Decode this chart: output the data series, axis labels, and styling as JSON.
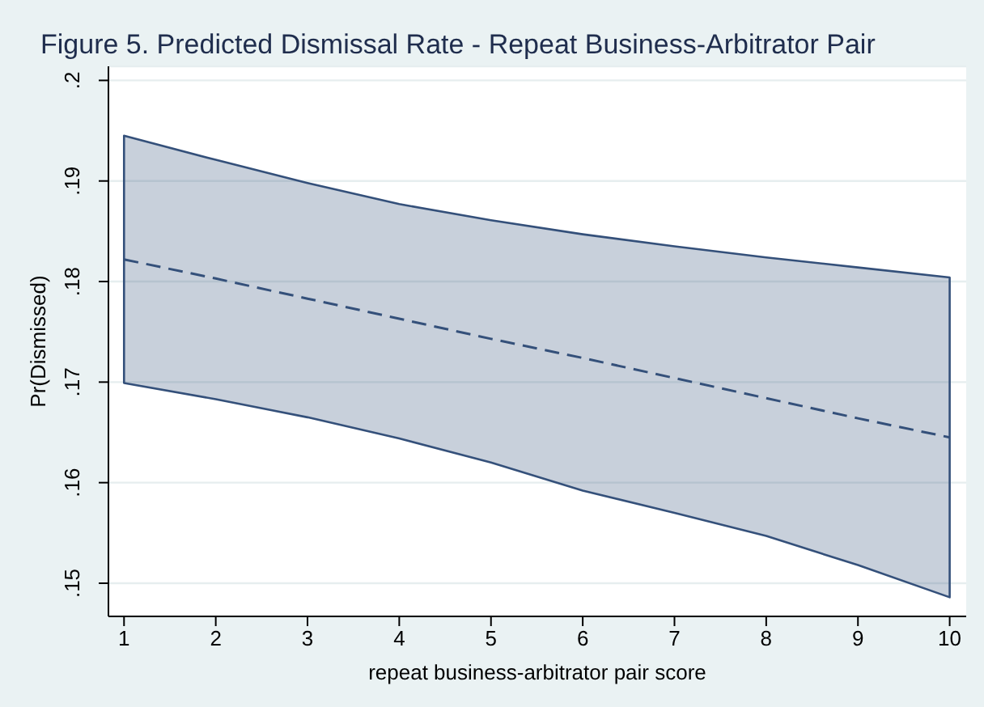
{
  "chart_data": {
    "type": "line",
    "title": "Figure 5. Predicted Dismissal Rate - Repeat Business-Arbitrator Pair",
    "xlabel": "repeat business-arbitrator pair score",
    "ylabel": "Pr(Dismissed)",
    "x": [
      1,
      2,
      3,
      4,
      5,
      6,
      7,
      8,
      9,
      10
    ],
    "series": [
      {
        "color": "#34507a",
        "values": [
          0.1822,
          0.1803,
          0.1783,
          0.1763,
          0.1743,
          0.1724,
          0.1704,
          0.1684,
          0.1664,
          0.1645
        ],
        "lower": [
          0.1699,
          0.1683,
          0.1665,
          0.1644,
          0.162,
          0.1592,
          0.157,
          0.1547,
          0.1518,
          0.1486
        ],
        "upper": [
          0.1945,
          0.1921,
          0.1898,
          0.1877,
          0.1861,
          0.1847,
          0.1835,
          0.1824,
          0.1814,
          0.1804
        ]
      }
    ],
    "xlim": [
      0.83,
      10.18
    ],
    "ylim": [
      0.1467,
      0.2014
    ],
    "xticks": [
      1,
      2,
      3,
      4,
      5,
      6,
      7,
      8,
      9,
      10
    ],
    "yticks": [
      {
        "value": 0.15,
        "label": ".15"
      },
      {
        "value": 0.16,
        "label": ".16"
      },
      {
        "value": 0.17,
        "label": ".17"
      },
      {
        "value": 0.18,
        "label": ".18"
      },
      {
        "value": 0.19,
        "label": ".19"
      },
      {
        "value": 0.2,
        "label": ".2"
      }
    ],
    "grid": "y",
    "legend": false,
    "marker": "none",
    "line_style": "dashed"
  }
}
